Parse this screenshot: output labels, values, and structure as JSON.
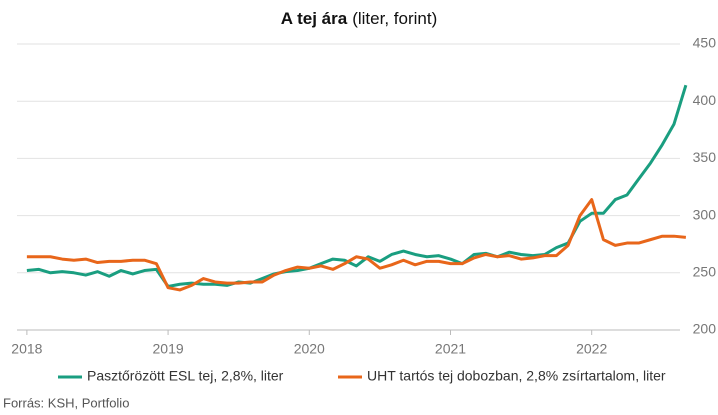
{
  "chart_data": {
    "type": "line",
    "title": "A tej ára",
    "subtitle": "(liter, forint)",
    "source": "Forrás: KSH, Portfolio",
    "x": [
      2018,
      2018.083,
      2018.167,
      2018.25,
      2018.333,
      2018.417,
      2018.5,
      2018.583,
      2018.667,
      2018.75,
      2018.833,
      2018.917,
      2019,
      2019.083,
      2019.167,
      2019.25,
      2019.333,
      2019.417,
      2019.5,
      2019.583,
      2019.667,
      2019.75,
      2019.833,
      2019.917,
      2020,
      2020.083,
      2020.167,
      2020.25,
      2020.333,
      2020.417,
      2020.5,
      2020.583,
      2020.667,
      2020.75,
      2020.833,
      2020.917,
      2021,
      2021.083,
      2021.167,
      2021.25,
      2021.333,
      2021.417,
      2021.5,
      2021.583,
      2021.667,
      2021.75,
      2021.833,
      2021.917,
      2022,
      2022.083,
      2022.167,
      2022.25,
      2022.333,
      2022.417,
      2022.5,
      2022.583,
      2022.667
    ],
    "series": [
      {
        "name": "Pasztőrözött ESL tej, 2,8%, liter",
        "color": "#1a9e80",
        "values": [
          252,
          253,
          250,
          251,
          250,
          248,
          251,
          247,
          252,
          249,
          252,
          253,
          238,
          240,
          241,
          240,
          240,
          239,
          242,
          241,
          245,
          249,
          251,
          252,
          254,
          258,
          262,
          261,
          256,
          264,
          260,
          266,
          269,
          266,
          264,
          265,
          262,
          258,
          266,
          267,
          264,
          268,
          266,
          265,
          266,
          272,
          276,
          295,
          302,
          302,
          314,
          318,
          332,
          346,
          362,
          380,
          414
        ]
      },
      {
        "name": "UHT tartós tej dobozban, 2,8% zsírtartalom, liter",
        "color": "#e8661a",
        "values": [
          264,
          264,
          264,
          262,
          261,
          262,
          259,
          260,
          260,
          261,
          261,
          258,
          237,
          235,
          239,
          245,
          242,
          241,
          241,
          242,
          242,
          248,
          252,
          255,
          254,
          256,
          253,
          258,
          264,
          262,
          254,
          257,
          261,
          257,
          260,
          260,
          258,
          258,
          263,
          266,
          264,
          265,
          262,
          263,
          265,
          265,
          274,
          300,
          314,
          279,
          274,
          276,
          276,
          279,
          282,
          282,
          281
        ]
      }
    ],
    "xlim": [
      2017.93,
      2022.76
    ],
    "xticks": [
      2018,
      2019,
      2020,
      2021,
      2022
    ],
    "ylim": [
      200,
      450
    ],
    "yticks": [
      200,
      250,
      300,
      350,
      400,
      450
    ],
    "grid": true
  }
}
